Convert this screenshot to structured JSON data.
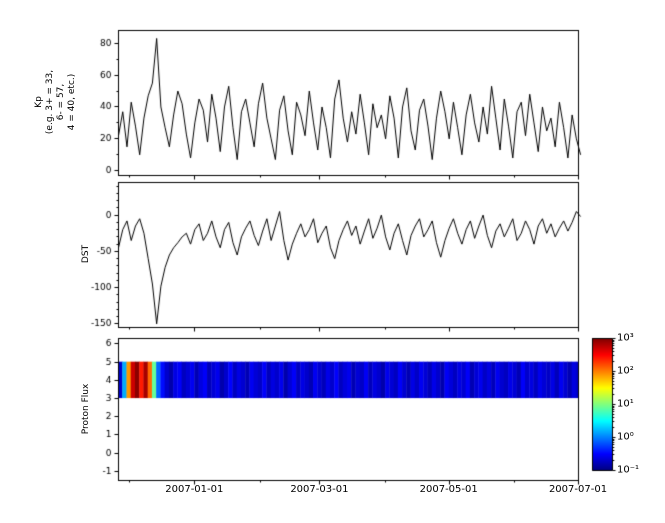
{
  "x_axis": {
    "start": "2006-11-26",
    "end": "2007-07-01",
    "tick_dates": [
      "2007-01-01",
      "2007-03-01",
      "2007-05-01",
      "2007-07-01"
    ],
    "tick_labels": [
      "2007-01-01",
      "2007-03-01",
      "2007-05-01",
      "2007-07-01"
    ],
    "minor_tick_dates": [
      "2006-12-01",
      "2007-02-01",
      "2007-04-01",
      "2007-06-01"
    ]
  },
  "chart_data": [
    {
      "type": "line",
      "name": "Kp",
      "ylabel_lines": [
        "Kp",
        "(e.g. 3+ = 33,",
        "6- = 57,",
        "4 = 40, etc.)"
      ],
      "ylim": [
        -3,
        88
      ],
      "yticks": [
        0,
        20,
        40,
        60,
        80
      ],
      "minor_step": 10,
      "sample_step_days": 2,
      "line_color": "#000000",
      "values": [
        22,
        37,
        15,
        43,
        28,
        10,
        33,
        47,
        55,
        83,
        40,
        27,
        15,
        35,
        50,
        42,
        23,
        8,
        30,
        45,
        38,
        18,
        48,
        33,
        12,
        40,
        53,
        27,
        7,
        37,
        45,
        30,
        15,
        42,
        55,
        33,
        20,
        7,
        38,
        47,
        25,
        10,
        43,
        35,
        22,
        50,
        30,
        13,
        40,
        27,
        8,
        45,
        57,
        33,
        18,
        37,
        23,
        48,
        30,
        10,
        42,
        27,
        35,
        20,
        47,
        33,
        8,
        40,
        52,
        25,
        13,
        38,
        45,
        28,
        7,
        33,
        50,
        37,
        20,
        43,
        27,
        10,
        35,
        48,
        30,
        18,
        40,
        23,
        53,
        33,
        13,
        45,
        28,
        8,
        37,
        43,
        22,
        48,
        30,
        12,
        40,
        25,
        33,
        15,
        43,
        27,
        8,
        35,
        20,
        10
      ]
    },
    {
      "type": "line",
      "name": "DST",
      "ylabel": "DST",
      "ylim": [
        -155,
        45
      ],
      "yticks": [
        -150,
        -100,
        -50,
        0
      ],
      "minor_step": 10,
      "sample_step_days": 2,
      "line_color": "#000000",
      "values": [
        -45,
        -20,
        -8,
        -35,
        -15,
        -5,
        -25,
        -60,
        -95,
        -150,
        -98,
        -72,
        -55,
        -45,
        -38,
        -30,
        -25,
        -40,
        -20,
        -12,
        -35,
        -25,
        -8,
        -30,
        -45,
        -20,
        -10,
        -38,
        -55,
        -30,
        -18,
        -8,
        -28,
        -42,
        -22,
        -5,
        -35,
        -15,
        5,
        -35,
        -62,
        -40,
        -25,
        -12,
        -30,
        -20,
        -5,
        -38,
        -25,
        -15,
        -45,
        -60,
        -35,
        -20,
        -8,
        -28,
        -15,
        -40,
        -22,
        -5,
        -32,
        -18,
        0,
        -30,
        -48,
        -25,
        -12,
        -35,
        -55,
        -28,
        -15,
        -5,
        -30,
        -20,
        -8,
        -38,
        -58,
        -35,
        -18,
        -5,
        -25,
        -40,
        -20,
        -8,
        -32,
        -15,
        0,
        -28,
        -45,
        -22,
        -12,
        -30,
        -18,
        -5,
        -35,
        -25,
        -8,
        -20,
        -40,
        -15,
        -5,
        -25,
        -12,
        -30,
        -18,
        -8,
        -22,
        -10,
        5,
        -2
      ]
    },
    {
      "type": "heatmap",
      "name": "Proton Flux",
      "ylabel": "Proton Flux",
      "ylim": [
        -1.5,
        6.3
      ],
      "yticks": [
        -1,
        0,
        1,
        2,
        3,
        4,
        5,
        6
      ],
      "band_ymin": 3,
      "band_ymax": 5,
      "sample_step_days": 2,
      "scale": "log",
      "vmin": 0.1,
      "vmax": 1000,
      "colormap": "jet",
      "values": [
        0.2,
        1.5,
        80,
        500,
        900,
        250,
        700,
        120,
        8,
        0.8,
        0.35,
        0.2,
        0.15,
        0.25,
        0.3,
        0.18,
        0.22,
        0.28,
        0.16,
        0.24,
        0.3,
        0.17,
        0.22,
        0.27,
        0.15,
        0.2,
        0.32,
        0.18,
        0.25,
        0.21,
        0.16,
        0.28,
        0.22,
        0.19,
        0.3,
        0.17,
        0.24,
        0.2,
        0.27,
        0.15,
        0.22,
        0.3,
        0.18,
        0.25,
        0.2,
        0.16,
        0.28,
        0.21,
        0.17,
        0.26,
        0.2,
        0.31,
        0.18,
        0.23,
        0.27,
        0.16,
        0.22,
        0.19,
        0.29,
        0.17,
        0.24,
        0.2,
        0.15,
        0.27,
        0.22,
        0.18,
        0.3,
        0.21,
        0.16,
        0.25,
        0.19,
        0.28,
        0.22,
        0.17,
        0.26,
        0.2,
        0.15,
        0.29,
        0.23,
        0.18,
        0.25,
        0.21,
        0.3,
        0.16,
        0.22,
        0.27,
        0.19,
        0.24,
        0.17,
        0.28,
        0.21,
        0.18,
        0.26,
        0.22,
        0.16,
        0.3,
        0.2,
        0.24,
        0.18,
        0.27,
        0.22,
        0.19,
        0.25,
        0.17,
        0.28,
        0.21,
        0.16,
        0.24,
        0.2,
        0.23
      ],
      "colorbar": {
        "tick_labels": [
          "10³",
          "10²",
          "10¹",
          "10⁰",
          "10⁻¹"
        ],
        "tick_exponents": [
          3,
          2,
          1,
          0,
          -1
        ]
      }
    }
  ]
}
